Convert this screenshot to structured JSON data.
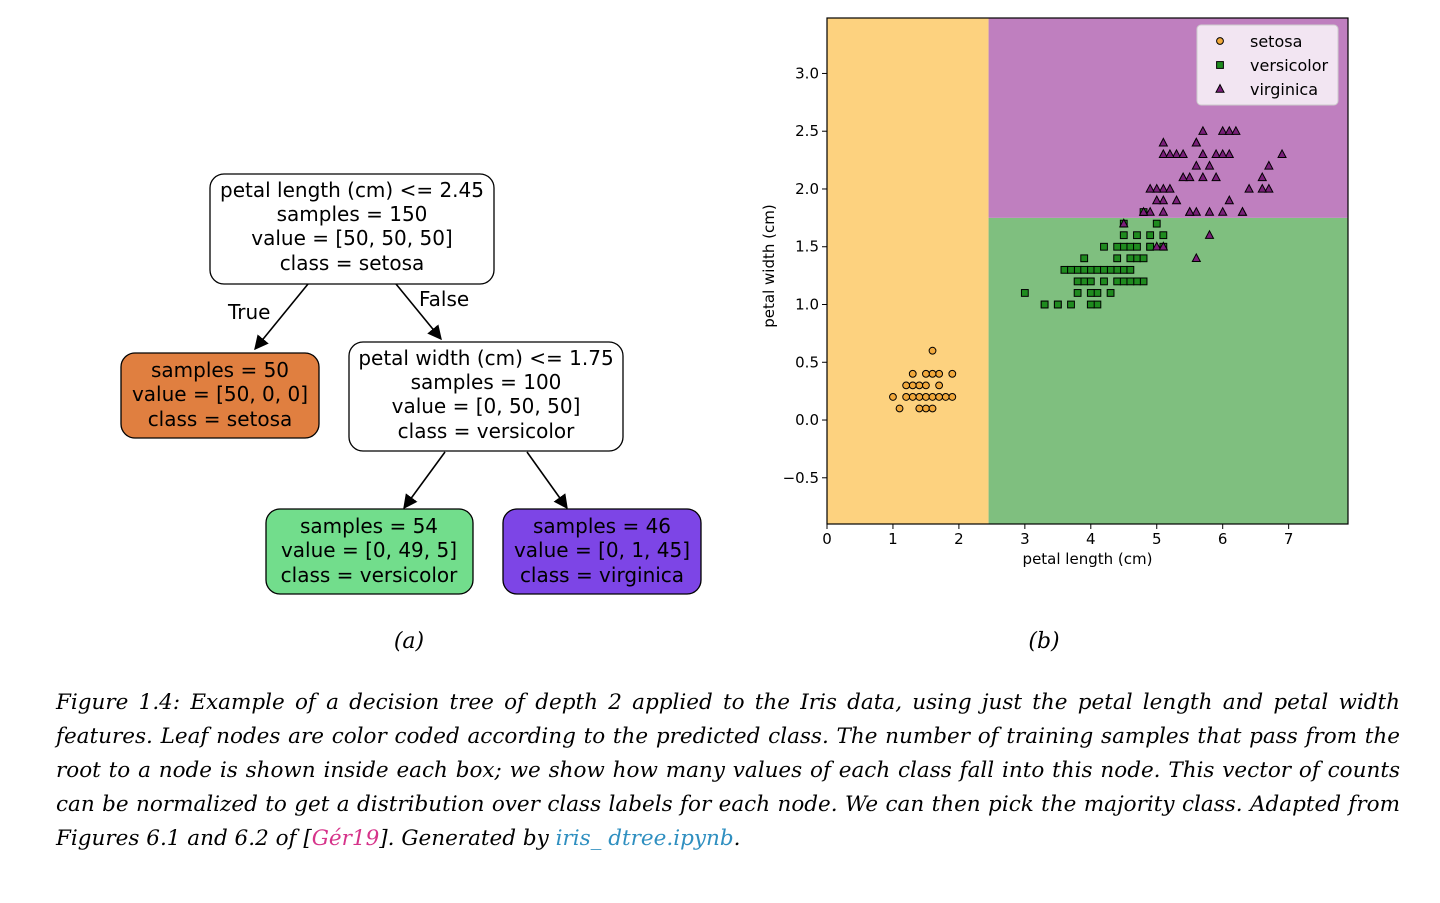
{
  "figure": {
    "tree": {
      "root": {
        "lines": [
          "petal length (cm) <= 2.45",
          "samples = 150",
          "value = [50, 50, 50]",
          "class = setosa"
        ]
      },
      "edge_true": "True",
      "edge_false": "False",
      "leaf_setosa": {
        "lines": [
          "samples = 50",
          "value = [50, 0, 0]",
          "class = setosa"
        ],
        "color": "#e07f40"
      },
      "split2": {
        "lines": [
          "petal width (cm) <= 1.75",
          "samples = 100",
          "value = [0, 50, 50]",
          "class = versicolor"
        ]
      },
      "leaf_versicolor": {
        "lines": [
          "samples = 54",
          "value = [0, 49, 5]",
          "class = versicolor"
        ],
        "color": "#72dd8c"
      },
      "leaf_virginica": {
        "lines": [
          "samples = 46",
          "value = [0, 1, 45]",
          "class = virginica"
        ],
        "color": "#7d45e6"
      }
    },
    "sub_a": "(a)",
    "sub_b": "(b)"
  },
  "chart_data": {
    "type": "scatter",
    "xlabel": "petal length (cm)",
    "ylabel": "petal width (cm)",
    "xlim": [
      0,
      7.9
    ],
    "ylim": [
      -0.9,
      3.48
    ],
    "xticks": [
      "0",
      "1",
      "2",
      "3",
      "4",
      "5",
      "6",
      "7"
    ],
    "yticks": [
      "−0.5",
      "0.0",
      "0.5",
      "1.0",
      "1.5",
      "2.0",
      "2.5",
      "3.0"
    ],
    "ytick_values": [
      -0.5,
      0.0,
      0.5,
      1.0,
      1.5,
      2.0,
      2.5,
      3.0
    ],
    "legend_position": "top-right",
    "regions": [
      {
        "class": "setosa",
        "x_range": [
          0,
          2.45
        ],
        "y_range": [
          -0.9,
          3.48
        ],
        "color": "#fdd27f"
      },
      {
        "class": "versicolor",
        "x_range": [
          2.45,
          7.9
        ],
        "y_range": [
          -0.9,
          1.75
        ],
        "color": "#7fbf7f"
      },
      {
        "class": "virginica",
        "x_range": [
          2.45,
          7.9
        ],
        "y_range": [
          1.75,
          3.48
        ],
        "color": "#bf7fbf"
      }
    ],
    "series": [
      {
        "name": "setosa",
        "marker": "circle",
        "color": "#f2a93b",
        "points": [
          [
            1.4,
            0.2
          ],
          [
            1.3,
            0.2
          ],
          [
            1.5,
            0.2
          ],
          [
            1.7,
            0.4
          ],
          [
            1.4,
            0.3
          ],
          [
            1.5,
            0.1
          ],
          [
            1.6,
            0.2
          ],
          [
            1.1,
            0.1
          ],
          [
            1.2,
            0.2
          ],
          [
            1.3,
            0.4
          ],
          [
            1.7,
            0.3
          ],
          [
            1.9,
            0.2
          ],
          [
            1.6,
            0.4
          ],
          [
            1.5,
            0.4
          ],
          [
            1.0,
            0.2
          ],
          [
            1.4,
            0.1
          ],
          [
            1.3,
            0.3
          ],
          [
            1.6,
            0.6
          ],
          [
            1.9,
            0.4
          ],
          [
            1.6,
            0.1
          ],
          [
            1.2,
            0.3
          ],
          [
            1.5,
            0.3
          ],
          [
            1.8,
            0.2
          ],
          [
            1.7,
            0.2
          ]
        ]
      },
      {
        "name": "versicolor",
        "marker": "square",
        "color": "#1f8b1f",
        "points": [
          [
            4.7,
            1.4
          ],
          [
            4.5,
            1.5
          ],
          [
            4.9,
            1.5
          ],
          [
            4.0,
            1.3
          ],
          [
            4.6,
            1.5
          ],
          [
            3.3,
            1.0
          ],
          [
            3.9,
            1.4
          ],
          [
            3.5,
            1.0
          ],
          [
            4.2,
            1.5
          ],
          [
            4.7,
            1.6
          ],
          [
            3.6,
            1.3
          ],
          [
            4.4,
            1.4
          ],
          [
            4.1,
            1.0
          ],
          [
            4.5,
            1.3
          ],
          [
            4.8,
            1.8
          ],
          [
            4.0,
            1.0
          ],
          [
            4.4,
            1.2
          ],
          [
            3.8,
            1.1
          ],
          [
            3.7,
            1.0
          ],
          [
            5.1,
            1.6
          ],
          [
            4.5,
            1.6
          ],
          [
            4.7,
            1.5
          ],
          [
            4.4,
            1.3
          ],
          [
            3.0,
            1.1
          ],
          [
            4.2,
            1.2
          ],
          [
            4.6,
            1.4
          ],
          [
            5.0,
            1.7
          ],
          [
            4.3,
            1.3
          ],
          [
            3.9,
            1.2
          ],
          [
            4.1,
            1.3
          ],
          [
            3.5,
            1.0
          ],
          [
            4.8,
            1.4
          ],
          [
            4.9,
            1.5
          ],
          [
            4.0,
            1.2
          ],
          [
            4.5,
            1.7
          ],
          [
            4.2,
            1.3
          ],
          [
            4.6,
            1.3
          ],
          [
            4.8,
            1.2
          ],
          [
            5.1,
            1.5
          ],
          [
            4.3,
            1.1
          ],
          [
            3.8,
            1.3
          ],
          [
            4.5,
            1.2
          ],
          [
            4.7,
            1.2
          ],
          [
            3.8,
            1.2
          ],
          [
            3.7,
            1.3
          ],
          [
            4.9,
            1.6
          ],
          [
            3.3,
            1.0
          ],
          [
            4.1,
            1.1
          ],
          [
            4.0,
            1.1
          ],
          [
            4.4,
            1.5
          ],
          [
            3.9,
            1.3
          ],
          [
            4.6,
            1.2
          ]
        ]
      },
      {
        "name": "virginica",
        "marker": "triangle",
        "color": "#7a1f7a",
        "points": [
          [
            6.0,
            2.5
          ],
          [
            5.1,
            1.9
          ],
          [
            5.9,
            2.1
          ],
          [
            5.6,
            1.8
          ],
          [
            5.8,
            2.2
          ],
          [
            6.6,
            2.1
          ],
          [
            4.5,
            1.7
          ],
          [
            6.3,
            1.8
          ],
          [
            5.8,
            1.8
          ],
          [
            6.1,
            2.5
          ],
          [
            5.1,
            2.0
          ],
          [
            5.3,
            1.9
          ],
          [
            5.5,
            2.1
          ],
          [
            5.0,
            2.0
          ],
          [
            5.1,
            2.4
          ],
          [
            5.3,
            2.3
          ],
          [
            5.5,
            1.8
          ],
          [
            6.7,
            2.2
          ],
          [
            6.9,
            2.3
          ],
          [
            5.0,
            1.5
          ],
          [
            5.7,
            2.3
          ],
          [
            4.9,
            2.0
          ],
          [
            6.7,
            2.0
          ],
          [
            4.9,
            1.8
          ],
          [
            5.7,
            2.1
          ],
          [
            6.0,
            1.8
          ],
          [
            4.8,
            1.8
          ],
          [
            5.8,
            1.6
          ],
          [
            6.1,
            1.9
          ],
          [
            6.4,
            2.0
          ],
          [
            5.6,
            2.2
          ],
          [
            5.1,
            1.5
          ],
          [
            5.6,
            1.4
          ],
          [
            6.1,
            2.3
          ],
          [
            5.6,
            2.4
          ],
          [
            5.5,
            1.8
          ],
          [
            5.4,
            2.1
          ],
          [
            5.6,
            2.4
          ],
          [
            5.1,
            2.3
          ],
          [
            5.9,
            2.3
          ],
          [
            5.7,
            2.5
          ],
          [
            5.2,
            2.3
          ],
          [
            5.0,
            1.9
          ],
          [
            5.2,
            2.0
          ],
          [
            5.4,
            2.3
          ],
          [
            5.1,
            1.8
          ],
          [
            6.6,
            2.0
          ],
          [
            6.0,
            2.3
          ],
          [
            6.3,
            1.8
          ],
          [
            6.2,
            2.5
          ]
        ]
      }
    ]
  },
  "caption": {
    "part1": "Figure 1.4: Example of a decision tree of depth 2 applied to the Iris data, using just the petal length and petal width features. Leaf nodes are color coded according to the predicted class. The number of training samples that pass from the root to a node is shown inside each box; we show how many values of each class fall into this node. This vector of counts can be normalized to get a distribution over class labels for each node. We can then pick the majority class. Adapted from Figures 6.1 and 6.2 of [",
    "cite": "Gér19",
    "part2": "]. Generated by ",
    "link": "iris_ dtree.ipynb",
    "part3": "."
  }
}
